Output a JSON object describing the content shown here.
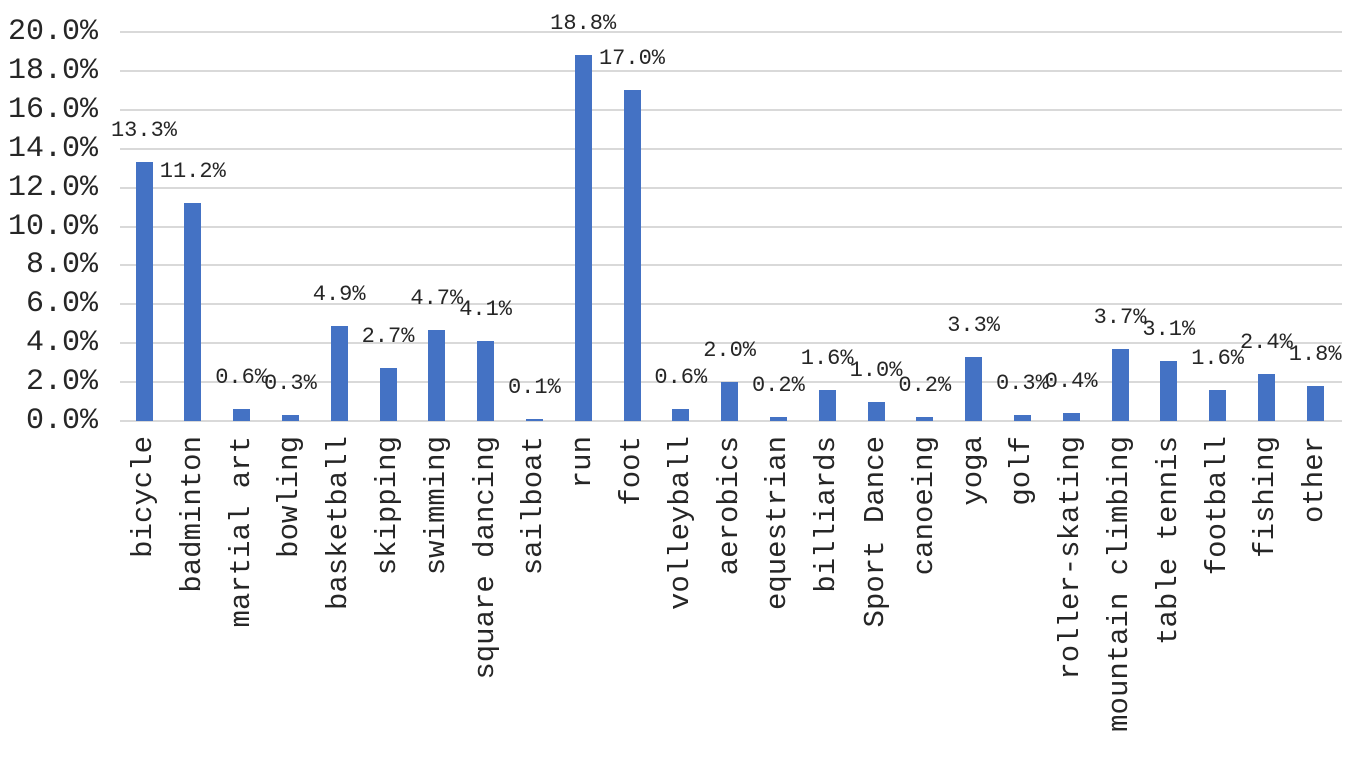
{
  "chart_data": {
    "type": "bar",
    "title": "",
    "xlabel": "",
    "ylabel": "",
    "categories": [
      "bicycle",
      "badminton",
      "martial art",
      "bowling",
      "basketball",
      "skipping",
      "swimming",
      "square dancing",
      "sailboat",
      "run",
      "foot",
      "volleyball",
      "aerobics",
      "equestrian",
      "billiards",
      "Sport Dance",
      "canoeing",
      "yoga",
      "golf",
      "roller-skating",
      "mountain climbing",
      "table tennis",
      "football",
      "fishing",
      "other"
    ],
    "values": [
      13.3,
      11.2,
      0.6,
      0.3,
      4.9,
      2.7,
      4.7,
      4.1,
      0.1,
      18.8,
      17.0,
      0.6,
      2.0,
      0.2,
      1.6,
      1.0,
      0.2,
      3.3,
      0.3,
      0.4,
      3.7,
      3.1,
      1.6,
      2.4,
      1.8
    ],
    "value_labels": [
      "13.3%",
      "11.2%",
      "0.6%",
      "0.3%",
      "4.9%",
      "2.7%",
      "4.7%",
      "4.1%",
      "0.1%",
      "18.8%",
      "17.0%",
      "0.6%",
      "2.0%",
      "0.2%",
      "1.6%",
      "1.0%",
      "0.2%",
      "3.3%",
      "0.3%",
      "0.4%",
      "3.7%",
      "3.1%",
      "1.6%",
      "2.4%",
      "1.8%"
    ],
    "y_ticks": [
      "0.0%",
      "2.0%",
      "4.0%",
      "6.0%",
      "8.0%",
      "10.0%",
      "12.0%",
      "14.0%",
      "16.0%",
      "18.0%",
      "20.0%"
    ],
    "ylim": [
      0,
      20
    ],
    "grid": true,
    "legend": "none",
    "x_label_rotation": 90,
    "data_label_position": "outside-end",
    "colors": {
      "bar": "#4472C4",
      "gridline": "#D9D9D9",
      "text": "#262626",
      "background": "#FFFFFF"
    }
  }
}
